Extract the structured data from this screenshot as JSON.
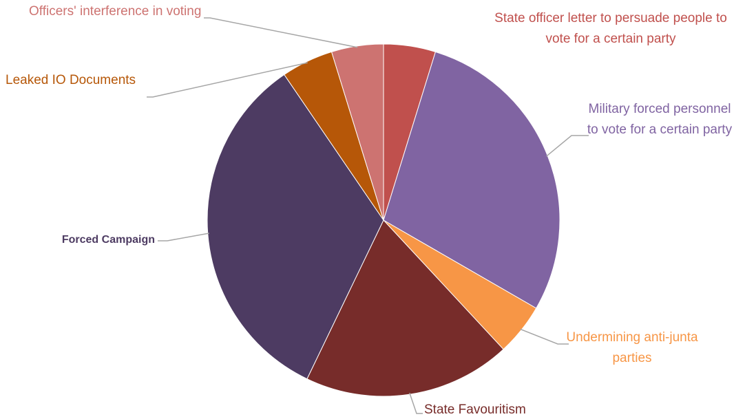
{
  "chart_data": {
    "type": "pie",
    "categories": [
      "State officer letter to persuade people to vote for a certain party",
      "Military forced personnel to vote for a certain party",
      "Undermining anti-junta parties",
      "State Favouritism",
      "Forced Campaign",
      "Leaked IO Documents",
      "Officers' interference in voting"
    ],
    "values": [
      1,
      6,
      1,
      4,
      7,
      1,
      1
    ],
    "colors": [
      "#c0504d",
      "#8064a2",
      "#f79646",
      "#772c2a",
      "#4d3b62",
      "#b65708",
      "#cd7371"
    ]
  }
}
